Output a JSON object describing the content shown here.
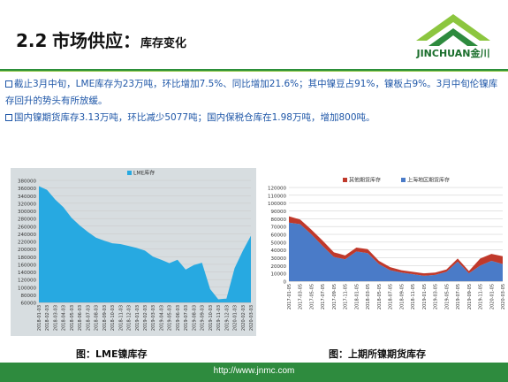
{
  "header": {
    "section_number": "2.2",
    "section_title": "市场供应：",
    "subtitle": "库存变化",
    "logo_text": "JINCHUAN金川"
  },
  "bullets": [
    "截止3月中旬，LME库存为23万吨，环比增加7.5%、同比增加21.6%；其中镍豆占91%，镍板占9%。3月中旬伦镍库存回升的势头有所放缓。",
    "国内镍期货库存3.13万吨，环比减少5077吨；国内保税仓库在1.98万吨，增加800吨。"
  ],
  "captions": {
    "left": "图：LME镍库存",
    "right": "图：上期所镍期货库存"
  },
  "footer": {
    "url": "http://www.jnmc.com"
  },
  "colors": {
    "lme": "#27a9e1",
    "other": "#c0392b",
    "shanghai": "#4a7bc8",
    "brand": "#2e8b3e"
  },
  "chart_data": [
    {
      "type": "area",
      "legend": [
        "LME库存"
      ],
      "legend_position": "top-center",
      "ylim": [
        60000,
        380000
      ],
      "yticks": [
        60000,
        80000,
        100000,
        120000,
        140000,
        160000,
        180000,
        200000,
        220000,
        240000,
        260000,
        280000,
        300000,
        320000,
        340000,
        360000,
        380000
      ],
      "x": [
        "2018-01-03",
        "2018-02-03",
        "2018-03-03",
        "2018-04-03",
        "2018-05-03",
        "2018-06-03",
        "2018-07-03",
        "2018-08-03",
        "2018-09-03",
        "2018-10-03",
        "2018-11-03",
        "2018-12-03",
        "2019-01-03",
        "2019-02-03",
        "2019-03-03",
        "2019-04-03",
        "2019-05-03",
        "2019-06-03",
        "2019-07-03",
        "2019-08-03",
        "2019-09-03",
        "2019-10-03",
        "2019-11-03",
        "2019-12-03",
        "2020-01-03",
        "2020-02-03",
        "2020-03-03"
      ],
      "series": [
        {
          "name": "LME库存",
          "values": [
            365000,
            355000,
            330000,
            310000,
            282000,
            262000,
            245000,
            230000,
            222000,
            215000,
            213000,
            208000,
            203000,
            196000,
            180000,
            172000,
            163000,
            172000,
            146000,
            158000,
            164000,
            95000,
            68000,
            70000,
            150000,
            195000,
            235000
          ]
        }
      ]
    },
    {
      "type": "area",
      "stacked": true,
      "legend": [
        "其他期货库存",
        "上海地区期货库存"
      ],
      "legend_position": "top-center",
      "ylim": [
        0,
        120000
      ],
      "yticks": [
        0,
        10000,
        20000,
        30000,
        40000,
        50000,
        60000,
        70000,
        80000,
        90000,
        100000,
        110000,
        120000
      ],
      "x": [
        "2017-01-05",
        "2017-03-05",
        "2017-05-05",
        "2017-07-05",
        "2017-09-05",
        "2017-11-05",
        "2018-01-05",
        "2018-03-05",
        "2018-05-05",
        "2018-07-05",
        "2018-09-05",
        "2018-11-05",
        "2019-01-05",
        "2019-03-05",
        "2019-05-05",
        "2019-07-05",
        "2019-09-05",
        "2019-11-05",
        "2020-01-05",
        "2020-03-05"
      ],
      "series": [
        {
          "name": "上海地区期货库存",
          "values": [
            75000,
            73000,
            60000,
            45000,
            31000,
            28000,
            38000,
            36000,
            22000,
            14000,
            11000,
            9000,
            7000,
            8000,
            12000,
            25000,
            10000,
            20000,
            26000,
            22000
          ]
        },
        {
          "name": "其他期货库存",
          "values": [
            8000,
            6000,
            6000,
            7000,
            6000,
            5000,
            5000,
            5000,
            4000,
            4000,
            3000,
            3000,
            3000,
            3000,
            3000,
            4000,
            3000,
            9000,
            9000,
            10000
          ]
        }
      ]
    }
  ]
}
